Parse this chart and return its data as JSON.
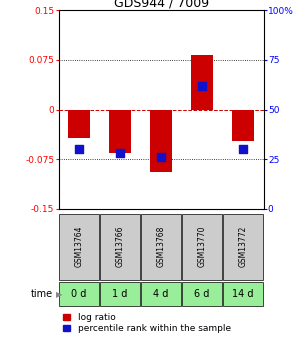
{
  "title": "GDS944 / 7009",
  "categories": [
    "GSM13764",
    "GSM13766",
    "GSM13768",
    "GSM13770",
    "GSM13772"
  ],
  "time_labels": [
    "0 d",
    "1 d",
    "4 d",
    "6 d",
    "14 d"
  ],
  "log_ratios": [
    -0.043,
    -0.065,
    -0.095,
    0.083,
    -0.047
  ],
  "percentile_ranks": [
    30,
    28,
    26,
    62,
    30
  ],
  "ylim": [
    -0.15,
    0.15
  ],
  "yticks_left": [
    -0.15,
    -0.075,
    0,
    0.075,
    0.15
  ],
  "yticks_right": [
    0,
    25,
    50,
    75,
    100
  ],
  "bar_color": "#cc0000",
  "dot_color": "#1111cc",
  "bar_width": 0.55,
  "dot_size": 30,
  "zero_line_color": "#cc0000",
  "bg_color": "#ffffff",
  "sample_bg": "#cccccc",
  "time_bg": "#99ee99",
  "title_fontsize": 9,
  "tick_fontsize": 6.5,
  "legend_fontsize": 6.5
}
